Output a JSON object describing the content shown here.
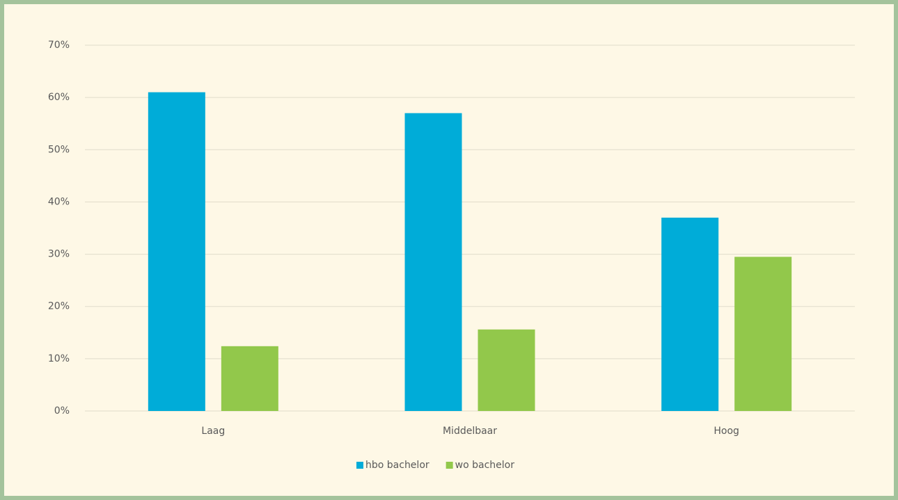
{
  "chart_data": {
    "type": "bar",
    "categories": [
      "Laag",
      "Middelbaar",
      "Hoog"
    ],
    "series": [
      {
        "name": "hbo bachelor",
        "color": "#00acd8",
        "values": [
          61,
          57,
          37
        ]
      },
      {
        "name": "wo bachelor",
        "color": "#92c84b",
        "values": [
          12.4,
          15.6,
          29.5
        ]
      }
    ],
    "ylim": [
      0,
      70
    ],
    "yticks": [
      {
        "value": 0,
        "label": "0%"
      },
      {
        "value": 10,
        "label": "10%"
      },
      {
        "value": 20,
        "label": "20%"
      },
      {
        "value": 30,
        "label": "30%"
      },
      {
        "value": 40,
        "label": "40%"
      },
      {
        "value": 50,
        "label": "50%"
      },
      {
        "value": 60,
        "label": "60%"
      },
      {
        "value": 70,
        "label": "70%"
      }
    ],
    "grid": true,
    "legend": "bottom"
  }
}
